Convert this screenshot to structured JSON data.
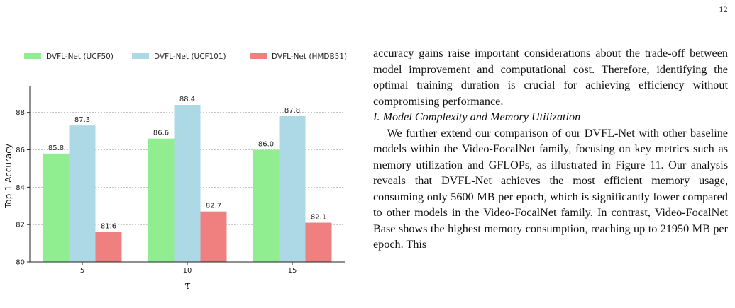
{
  "page": {
    "number": "12"
  },
  "figure": {
    "chart_data": {
      "type": "bar",
      "categories": [
        "5",
        "10",
        "15"
      ],
      "series": [
        {
          "name": "DVFL-Net (UCF50)",
          "values": [
            85.8,
            86.6,
            86.0
          ],
          "labels": [
            "85.8",
            "86.6",
            "86.0"
          ],
          "color": "#90ee90"
        },
        {
          "name": "DVFL-Net (UCF101)",
          "values": [
            87.3,
            88.4,
            87.8
          ],
          "labels": [
            "87.3",
            "88.4",
            "87.8"
          ],
          "color": "#add8e6"
        },
        {
          "name": "DVFL-Net (HMDB51)",
          "values": [
            81.6,
            82.7,
            82.1
          ],
          "labels": [
            "81.6",
            "82.7",
            "82.1"
          ],
          "color": "#f08080"
        }
      ],
      "xlabel": "τ",
      "ylabel": "Top-1 Accuracy",
      "ylim": [
        80,
        89.2
      ],
      "yticks": [
        "80",
        "82",
        "84",
        "86",
        "88"
      ],
      "grid": true,
      "legend_position": "top"
    }
  },
  "text": {
    "para1": "accuracy gains raise important considerations about the trade-off between model improvement and computational cost. Therefore, identifying the optimal training duration is crucial for achieving efficiency without compromising performance.",
    "heading": "I. Model Complexity and Memory Utilization",
    "para2": "We further extend our comparison of our DVFL-Net with other baseline models within the Video-FocalNet family, focusing on key metrics such as memory utilization and GFLOPs, as illustrated in Figure 11. Our analysis reveals that DVFL-Net achieves the most efficient memory usage, consuming only 5600 MB per epoch, which is significantly lower compared to other models in the Video-FocalNet family. In contrast, Video-FocalNet Base shows the highest memory consumption, reaching up to 21950 MB per epoch. This"
  }
}
